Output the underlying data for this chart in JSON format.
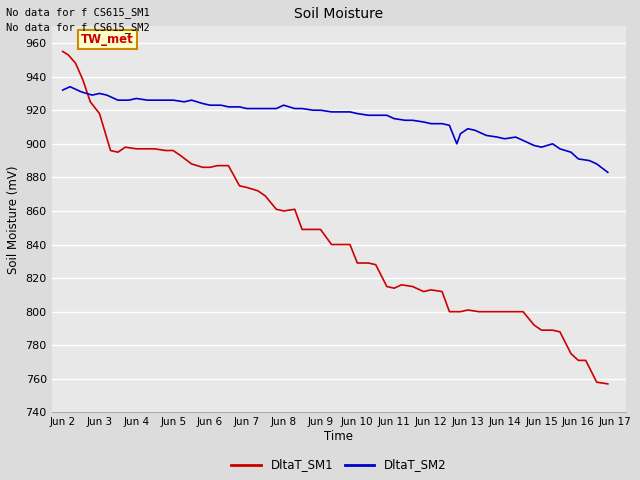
{
  "title": "Soil Moisture",
  "ylabel": "Soil Moisture (mV)",
  "xlabel": "Time",
  "ylim": [
    740,
    970
  ],
  "yticks": [
    740,
    760,
    780,
    800,
    820,
    840,
    860,
    880,
    900,
    920,
    940,
    960
  ],
  "outer_bg": "#dcdcdc",
  "plot_bg_color": "#e8e8e8",
  "grid_color": "#ffffff",
  "text_annotations": [
    "No data for f CS615_SM1",
    "No data for f CS615_SM2"
  ],
  "box_label": "TW_met",
  "box_color": "#ffffcc",
  "box_edge_color": "#cc8800",
  "sm1_color": "#cc0000",
  "sm2_color": "#0000cc",
  "legend_label1": "DltaT_SM1",
  "legend_label2": "DltaT_SM2",
  "xtick_labels": [
    "Jun 2",
    "Jun 3",
    "Jun 4",
    "Jun 5",
    "Jun 6",
    "Jun 7",
    "Jun 8",
    "Jun 9",
    "Jun 10",
    "Jun 11",
    "Jun 12",
    "Jun 13",
    "Jun 14",
    "Jun 15",
    "Jun 16",
    "Jun 17"
  ],
  "sm1_x": [
    0.0,
    0.15,
    0.35,
    0.55,
    0.75,
    1.0,
    1.3,
    1.5,
    1.7,
    2.0,
    2.2,
    2.5,
    2.8,
    3.0,
    3.2,
    3.5,
    3.8,
    4.0,
    4.2,
    4.5,
    4.8,
    5.0,
    5.3,
    5.5,
    5.8,
    6.0,
    6.3,
    6.5,
    6.8,
    7.0,
    7.3,
    7.5,
    7.8,
    8.0,
    8.3,
    8.5,
    8.8,
    9.0,
    9.2,
    9.5,
    9.8,
    10.0,
    10.3,
    10.5,
    10.8,
    11.0,
    11.3,
    11.5,
    11.8,
    12.0,
    12.2,
    12.5,
    12.8,
    13.0,
    13.3,
    13.5,
    13.8,
    14.0,
    14.2,
    14.5,
    14.8
  ],
  "sm1_y": [
    955,
    953,
    948,
    938,
    925,
    918,
    896,
    895,
    898,
    897,
    897,
    897,
    896,
    896,
    893,
    888,
    886,
    886,
    887,
    887,
    875,
    874,
    872,
    869,
    861,
    860,
    861,
    849,
    849,
    849,
    840,
    840,
    840,
    829,
    829,
    828,
    815,
    814,
    816,
    815,
    812,
    813,
    812,
    800,
    800,
    801,
    800,
    800,
    800,
    800,
    800,
    800,
    792,
    789,
    789,
    788,
    775,
    771,
    771,
    758,
    757
  ],
  "sm2_x": [
    0.0,
    0.2,
    0.5,
    0.8,
    1.0,
    1.2,
    1.5,
    1.8,
    2.0,
    2.3,
    2.5,
    2.8,
    3.0,
    3.3,
    3.5,
    3.8,
    4.0,
    4.3,
    4.5,
    4.8,
    5.0,
    5.3,
    5.5,
    5.8,
    6.0,
    6.3,
    6.5,
    6.8,
    7.0,
    7.3,
    7.5,
    7.8,
    8.0,
    8.3,
    8.5,
    8.8,
    9.0,
    9.3,
    9.5,
    9.8,
    10.0,
    10.3,
    10.5,
    10.7,
    10.8,
    11.0,
    11.2,
    11.3,
    11.5,
    11.8,
    12.0,
    12.3,
    12.5,
    12.8,
    13.0,
    13.3,
    13.5,
    13.8,
    14.0,
    14.3,
    14.5,
    14.8
  ],
  "sm2_y": [
    932,
    934,
    931,
    929,
    930,
    929,
    926,
    926,
    927,
    926,
    926,
    926,
    926,
    925,
    926,
    924,
    923,
    923,
    922,
    922,
    921,
    921,
    921,
    921,
    923,
    921,
    921,
    920,
    920,
    919,
    919,
    919,
    918,
    917,
    917,
    917,
    915,
    914,
    914,
    913,
    912,
    912,
    911,
    900,
    906,
    909,
    908,
    907,
    905,
    904,
    903,
    904,
    902,
    899,
    898,
    900,
    897,
    895,
    891,
    890,
    888,
    883
  ]
}
